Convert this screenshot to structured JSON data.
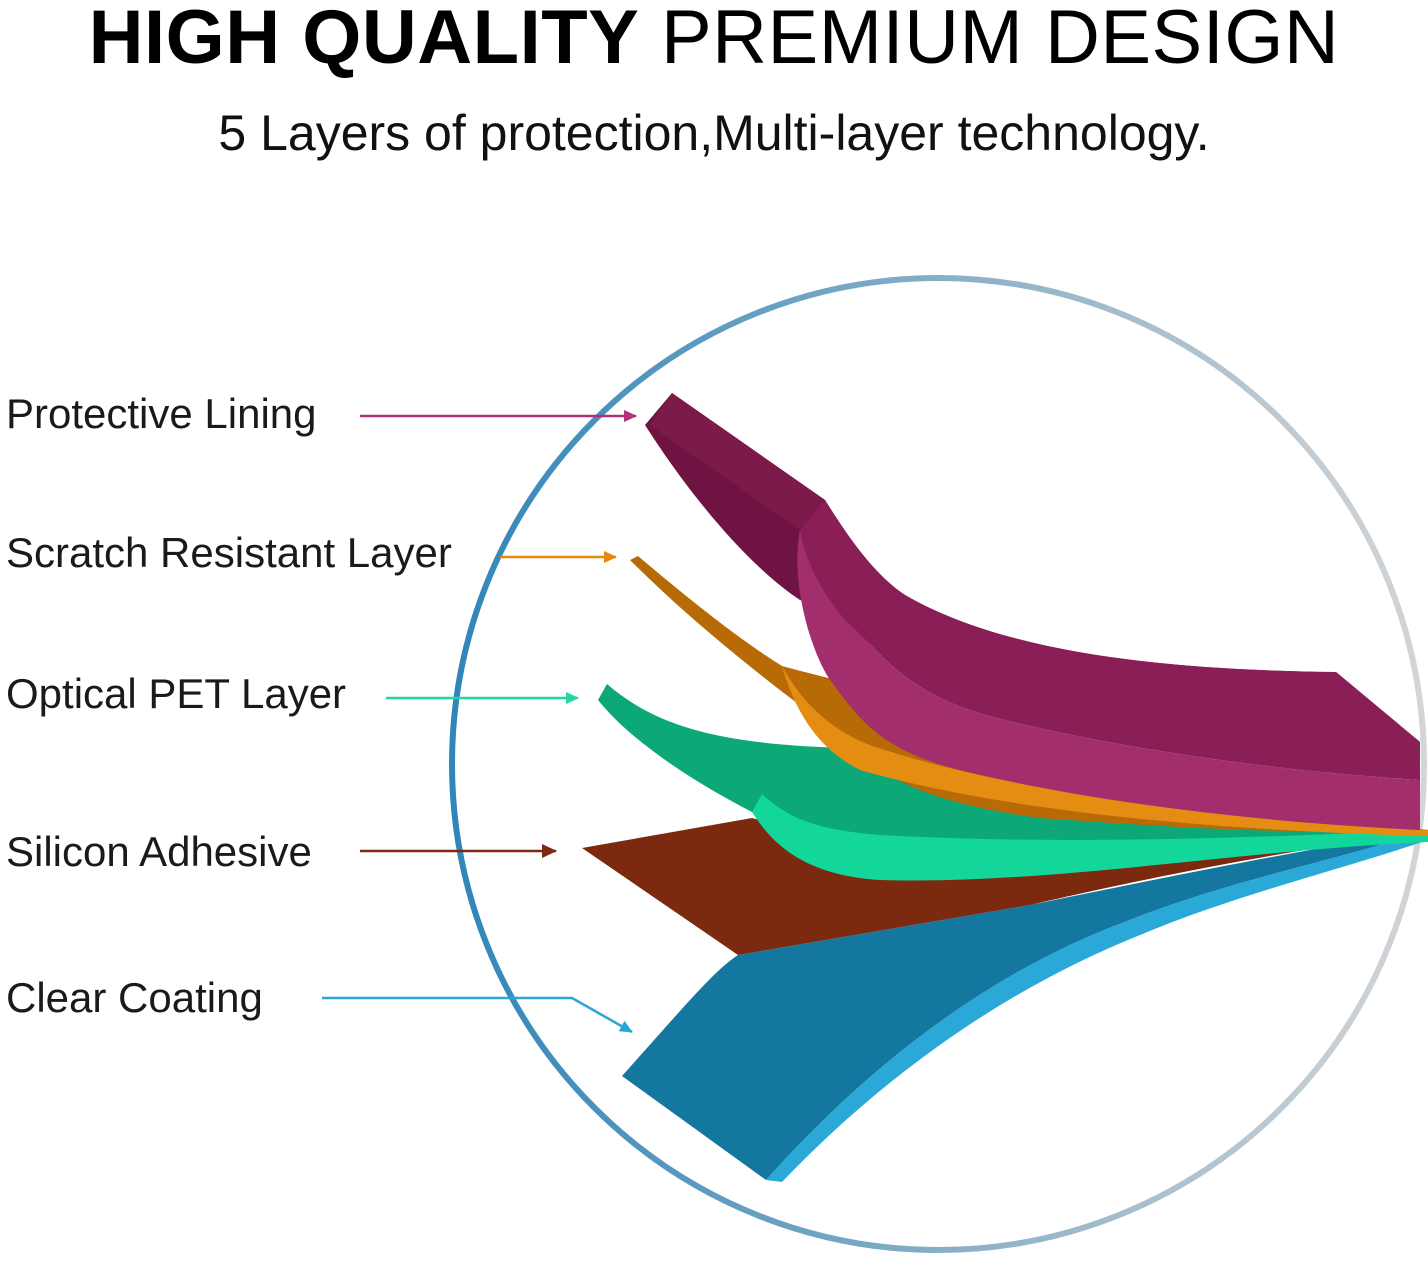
{
  "header": {
    "title_bold": "HIGH QUALITY",
    "title_light": "PREMIUM DESIGN",
    "subtitle": "5 Layers of protection,Multi-layer technology."
  },
  "layers": [
    {
      "label": "Protective Lining",
      "color": "#8c1f55",
      "arrow_color": "#b0307a"
    },
    {
      "label": "Scratch Resistant Layer",
      "color": "#c8730a",
      "arrow_color": "#e8880a"
    },
    {
      "label": "Optical PET Layer",
      "color": "#10a97c",
      "arrow_color": "#22d6a4"
    },
    {
      "label": "Silicon Adhesive",
      "color": "#7b2a10",
      "arrow_color": "#7b2a10"
    },
    {
      "label": "Clear Coating",
      "color": "#1683ad",
      "arrow_color": "#2aa6d6"
    }
  ],
  "colors": {
    "circle_left": "#2f86b8",
    "circle_right": "#c9cccf"
  }
}
